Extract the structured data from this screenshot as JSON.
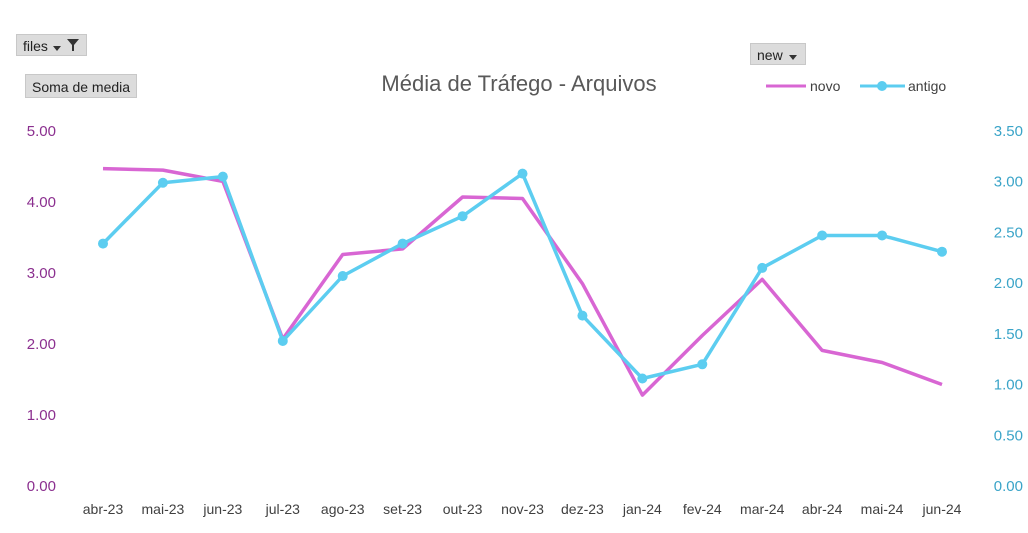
{
  "filters": {
    "files_label": "files",
    "measure_label": "Soma de media",
    "legend_field_label": "new"
  },
  "colors": {
    "novo": "#d866d3",
    "antigo": "#5ccdf0",
    "left_axis": "#8b2f8f",
    "right_axis": "#3aa4c8"
  },
  "chart_data": {
    "type": "line",
    "title": "Média de Tráfego - Arquivos",
    "categories": [
      "abr-23",
      "mai-23",
      "jun-23",
      "jul-23",
      "ago-23",
      "set-23",
      "out-23",
      "nov-23",
      "dez-23",
      "jan-24",
      "fev-24",
      "mar-24",
      "abr-24",
      "mai-24",
      "jun-24"
    ],
    "left_axis": {
      "ylim": [
        0,
        5
      ],
      "ticks": [
        "0.00",
        "1.00",
        "2.00",
        "3.00",
        "4.00",
        "5.00"
      ]
    },
    "right_axis": {
      "ylim": [
        0,
        3.5
      ],
      "ticks": [
        "0.00",
        "0.50",
        "1.00",
        "1.50",
        "2.00",
        "2.50",
        "3.00",
        "3.50"
      ]
    },
    "series": [
      {
        "name": "novo",
        "axis": "left",
        "markers": false,
        "values": [
          4.47,
          4.45,
          4.29,
          2.07,
          3.26,
          3.34,
          4.07,
          4.05,
          2.85,
          1.28,
          2.12,
          2.91,
          1.91,
          1.74,
          1.43
        ]
      },
      {
        "name": "antigo",
        "axis": "right",
        "markers": true,
        "values": [
          2.39,
          2.99,
          3.05,
          1.43,
          2.07,
          2.39,
          2.66,
          3.08,
          1.68,
          1.06,
          1.2,
          2.15,
          2.47,
          2.47,
          2.31
        ]
      }
    ],
    "legend": {
      "position": "top-right"
    },
    "grid": false
  }
}
